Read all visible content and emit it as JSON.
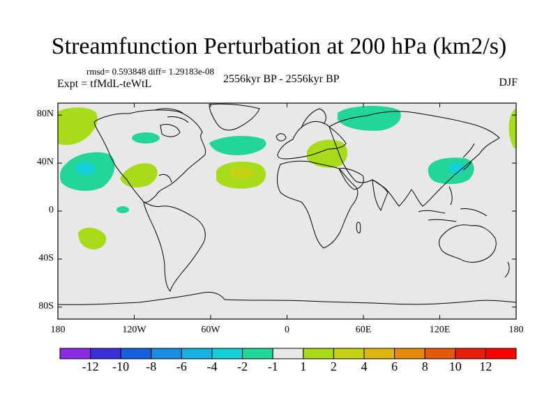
{
  "title": "Streamfunction Perturbation at 200 hPa (km2/s)",
  "stats": "rmsd= 0.593848 diff= 1.29183e-08",
  "experiment": "Expt = tfMdL-teWtL",
  "period": "2556kyr BP - 2556kyr BP",
  "season": "DJF",
  "map": {
    "lat_ticks": [
      "80N",
      "40N",
      "0",
      "40S",
      "80S"
    ],
    "lon_ticks": [
      "180",
      "120W",
      "60W",
      "0",
      "60E",
      "120E",
      "180"
    ],
    "background_color": "#e8e8e8",
    "anomalies": [
      {
        "name": "north-pacific-positive",
        "lon": -171,
        "lat": 65,
        "value": 1.5
      },
      {
        "name": "central-pacific-negative",
        "lon": -155,
        "lat": 28,
        "value": -1.5
      },
      {
        "name": "subtropical-atlantic-positive",
        "lon": -35,
        "lat": 25,
        "value": 3
      },
      {
        "name": "north-atlantic-negative",
        "lon": -45,
        "lat": 48,
        "value": -1.5
      },
      {
        "name": "siberia-negative",
        "lon": 65,
        "lat": 70,
        "value": -1.5
      },
      {
        "name": "mediterranean-positive",
        "lon": 30,
        "lat": 40,
        "value": 1.5
      },
      {
        "name": "east-asia-negative",
        "lon": 127,
        "lat": 28,
        "value": -2
      },
      {
        "name": "south-pacific-positive",
        "lon": -160,
        "lat": -25,
        "value": 1.5
      }
    ]
  },
  "colorbar": {
    "labels": [
      "-12",
      "-10",
      "-8",
      "-6",
      "-4",
      "-2",
      "-1",
      "1",
      "2",
      "4",
      "6",
      "8",
      "10",
      "12"
    ],
    "colors": [
      "#8a2be2",
      "#3a2fd6",
      "#1660e0",
      "#1a8de0",
      "#18b0e0",
      "#12cfd8",
      "#22d69a",
      "#e8e8e8",
      "#a8dc1a",
      "#c6d216",
      "#dcb80e",
      "#e28a0c",
      "#e25a0c",
      "#e61c0c",
      "#ff0000"
    ]
  }
}
